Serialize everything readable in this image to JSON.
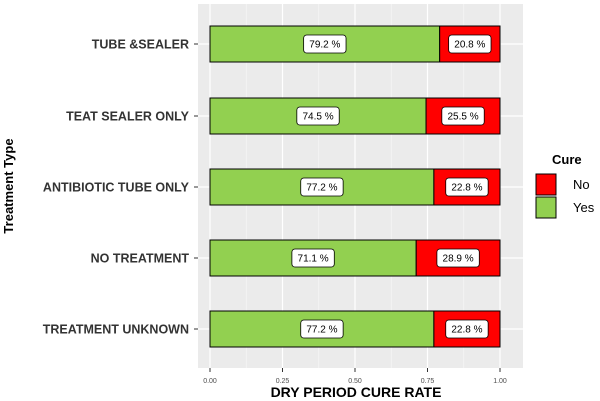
{
  "chart_data": {
    "type": "bar",
    "orientation": "horizontal",
    "stacked": true,
    "categories": [
      "TUBE &SEALER",
      "TEAT SEALER ONLY",
      "ANTIBIOTIC TUBE ONLY",
      "NO TREATMENT",
      "TREATMENT UNKNOWN"
    ],
    "series": [
      {
        "name": "Yes",
        "values": [
          0.792,
          0.745,
          0.772,
          0.711,
          0.772
        ],
        "labels": [
          "79.2 %",
          "74.5 %",
          "77.2 %",
          "71.1 %",
          "77.2 %"
        ],
        "color": "#92d050"
      },
      {
        "name": "No",
        "values": [
          0.208,
          0.255,
          0.228,
          0.289,
          0.228
        ],
        "labels": [
          "20.8 %",
          "25.5 %",
          "22.8 %",
          "28.9 %",
          "22.8 %"
        ],
        "color": "#ff0000"
      }
    ],
    "xlabel": "DRY PERIOD CURE RATE",
    "ylabel": "Treatment Type",
    "xlim": [
      0,
      1
    ],
    "xticks": [
      0,
      0.25,
      0.5,
      0.75,
      1
    ],
    "xtick_labels": [
      "0.00",
      "0.25",
      "0.50",
      "0.75",
      "1.00"
    ],
    "grid": true,
    "panel_background": "#ebebeb",
    "legend": {
      "title": "Cure",
      "placement": "right",
      "entries": [
        {
          "name": "No",
          "color": "#ff0000"
        },
        {
          "name": "Yes",
          "color": "#92d050"
        }
      ]
    }
  }
}
